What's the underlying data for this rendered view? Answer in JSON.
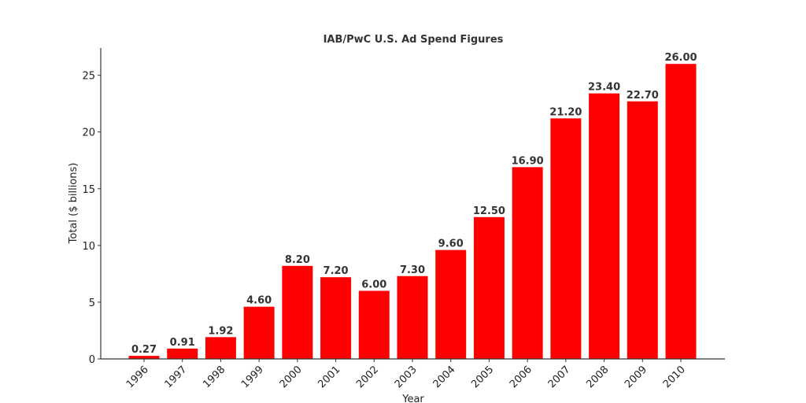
{
  "chart_data": {
    "type": "bar",
    "title": "IAB/PwC U.S. Ad Spend Figures",
    "xlabel": "Year",
    "ylabel": "Total ($ billions)",
    "categories": [
      "1996",
      "1997",
      "1998",
      "1999",
      "2000",
      "2001",
      "2002",
      "2003",
      "2004",
      "2005",
      "2006",
      "2007",
      "2008",
      "2009",
      "2010"
    ],
    "values": [
      0.27,
      0.91,
      1.92,
      4.6,
      8.2,
      7.2,
      6.0,
      7.3,
      9.6,
      12.5,
      16.9,
      21.2,
      23.4,
      22.7,
      26.0
    ],
    "data_labels": [
      "0.27",
      "0.91",
      "1.92",
      "4.60",
      "8.20",
      "7.20",
      "6.00",
      "7.30",
      "9.60",
      "12.50",
      "16.90",
      "21.20",
      "23.40",
      "22.70",
      "26.00"
    ],
    "yticks": [
      0,
      5,
      10,
      15,
      20,
      25
    ],
    "ylim": [
      0,
      27.4
    ],
    "bar_color": "#ff0000",
    "grid": false,
    "legend": "none",
    "xtick_rotation_deg": 45
  }
}
